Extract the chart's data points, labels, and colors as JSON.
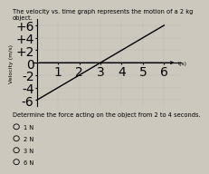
{
  "title": "The velocity vs. time graph represents the motion of a 2 kg object.",
  "question": "Determine the force acting on the object from 2 to 4 seconds.",
  "choices": [
    "1 N",
    "2 N",
    "3 N",
    "6 N"
  ],
  "ylabel": "Velocity (m/s)",
  "xlabel": "t(s)",
  "ytick_labels": [
    "+6",
    "+4",
    "+2",
    "0",
    "-2",
    "-4",
    "-6"
  ],
  "ytick_vals": [
    6,
    4,
    2,
    0,
    -2,
    -4,
    -6
  ],
  "xtick_vals": [
    1,
    2,
    3,
    4,
    5,
    6
  ],
  "ylim": [
    -7,
    7
  ],
  "xlim": [
    -0.2,
    6.8
  ],
  "diag_line": {
    "x": [
      0,
      6
    ],
    "y": [
      -6,
      6
    ]
  },
  "horiz_line": {
    "x": [
      0,
      6.5
    ],
    "y": [
      0,
      0
    ]
  },
  "bg_color": "#cdc8be",
  "plot_bg": "#cdc8be",
  "line_color": "black",
  "grid_color": "#aaaaaa",
  "title_fontsize": 4.8,
  "axis_label_fontsize": 4.5,
  "tick_fontsize": 4.2,
  "question_fontsize": 4.8,
  "choice_fontsize": 4.8
}
